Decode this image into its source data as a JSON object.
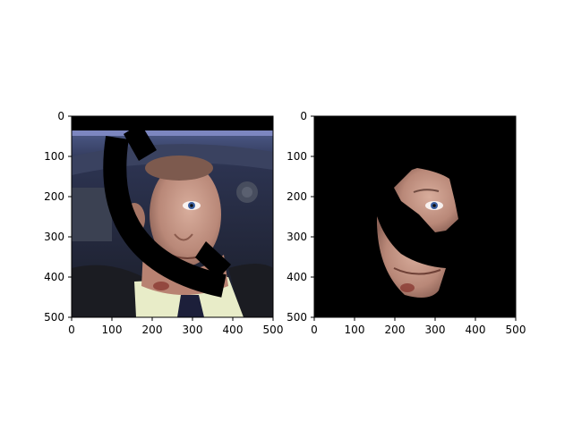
{
  "chart_data": [
    {
      "type": "image",
      "image": "left-photo-masked",
      "content": "head-and-shoulders photo of a man in a car, with a black arc-shaped occlusion band across the face",
      "xlim": [
        0,
        500
      ],
      "ylim": [
        500,
        0
      ],
      "x_ticks": [
        0,
        100,
        200,
        300,
        400,
        500
      ],
      "y_ticks": [
        0,
        100,
        200,
        300,
        400,
        500
      ],
      "grid": false
    },
    {
      "type": "image",
      "image": "right-face-segmentation",
      "content": "same photo with everything except the face region blacked out, including the arc occlusion",
      "xlim": [
        0,
        500
      ],
      "ylim": [
        500,
        0
      ],
      "x_ticks": [
        0,
        100,
        200,
        300,
        400,
        500
      ],
      "y_ticks": [
        0,
        100,
        200,
        300,
        400,
        500
      ],
      "grid": false
    }
  ],
  "colors": {
    "background": "#ffffff",
    "axes": "#000000",
    "mask": "#000000",
    "skin": "#c79a88",
    "skin_shadow": "#9c6e60",
    "car_interior": "#2a3048",
    "shirt": "#e8ecc8",
    "tie": "#1c1f3a",
    "jacket": "#1b1c22"
  }
}
